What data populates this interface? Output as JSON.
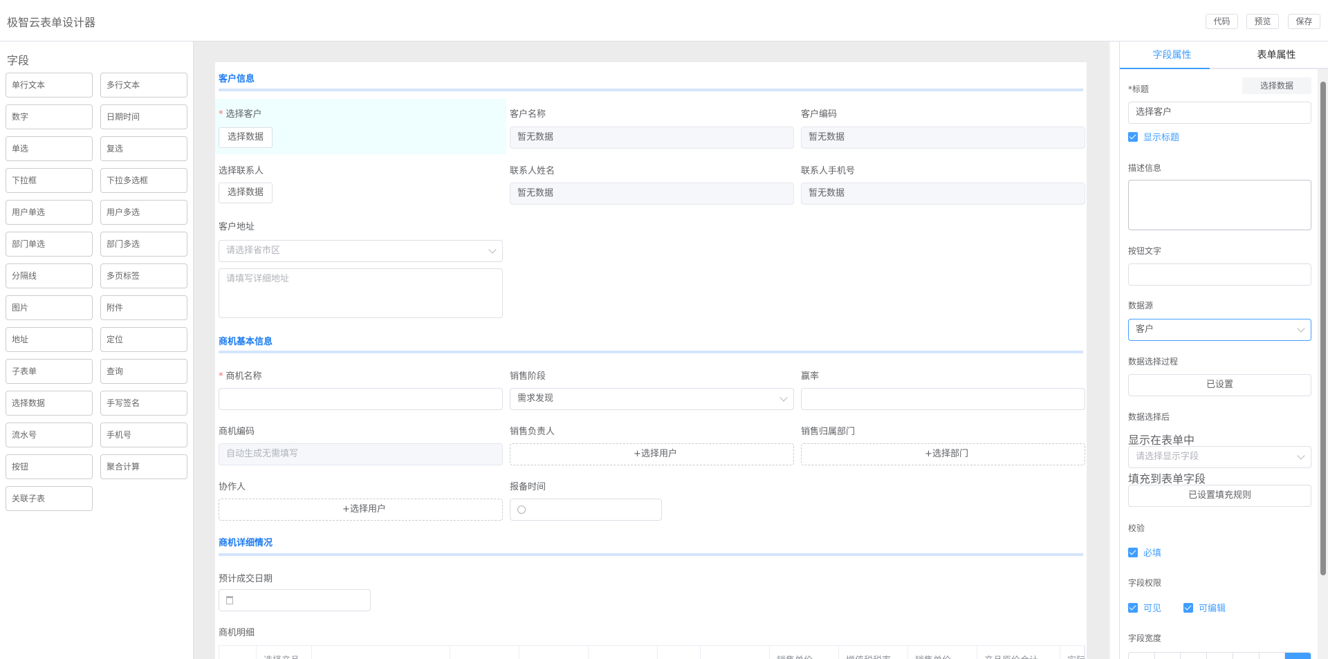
{
  "app_title": "极智云表单设计器",
  "toolbar": {
    "code": "代码",
    "preview": "预览",
    "save": "保存"
  },
  "fields_panel": {
    "title": "字段",
    "items": [
      "单行文本",
      "多行文本",
      "数字",
      "日期时间",
      "单选",
      "复选",
      "下拉框",
      "下拉多选框",
      "用户单选",
      "用户多选",
      "部门单选",
      "部门多选",
      "分隔线",
      "多页标签",
      "图片",
      "附件",
      "地址",
      "定位",
      "子表单",
      "查询",
      "选择数据",
      "手写签名",
      "流水号",
      "手机号",
      "按钮",
      "聚合计算",
      "关联子表"
    ]
  },
  "form": {
    "sec1": "客户信息",
    "select_customer": "选择客户",
    "select_data_btn": "选择数据",
    "customer_name": "客户名称",
    "customer_code": "客户编码",
    "no_data": "暂无数据",
    "select_contact": "选择联系人",
    "contact_name": "联系人姓名",
    "contact_phone": "联系人手机号",
    "address": "客户地址",
    "address_ph": "请选择省市区",
    "address_detail_ph": "请填写详细地址",
    "sec2": "商机基本信息",
    "opp_name": "商机名称",
    "sales_stage": "销售阶段",
    "sales_stage_value": "需求发现",
    "win_rate": "赢率",
    "opp_code": "商机编码",
    "opp_code_ph": "自动生成无需填写",
    "sales_owner": "销售负责人",
    "select_user": "+选择用户",
    "sales_dept": "销售归属部门",
    "select_dept": "+选择部门",
    "collaborator": "协作人",
    "report_time": "报备时间",
    "sec3": "商机详细情况",
    "expected_date": "预计成交日期",
    "details": "商机明细",
    "table_headers": [
      "",
      "选择产品",
      "",
      "",
      "",
      "",
      "",
      "",
      "销售单价",
      "增值税税率",
      "销售单价",
      "产品原价合计",
      "实际"
    ]
  },
  "props": {
    "tabs": [
      "字段属性",
      "表单属性"
    ],
    "active_tab": 0,
    "title_label": "*标题",
    "select_data": "选择数据",
    "title_value": "选择客户",
    "show_title": "显示标题",
    "desc_label": "描述信息",
    "btn_text_label": "按钮文字",
    "datasource_label": "数据源",
    "datasource_value": "客户",
    "process_label": "数据选择过程",
    "process_btn": "已设置",
    "after_label": "数据选择后",
    "show_in_form": "显示在表单中",
    "show_in_form_ph": "请选择显示字段",
    "fill_label": "填充到表单字段",
    "fill_btn": "已设置填充规则",
    "validate_label": "校验",
    "required": "必填",
    "perm_label": "字段权限",
    "visible": "可见",
    "editable": "可编辑",
    "width_label": "字段宽度"
  },
  "colors": {
    "accent": "#409eff",
    "section": "#1e7cf0",
    "selected_bg": "#effefe"
  }
}
